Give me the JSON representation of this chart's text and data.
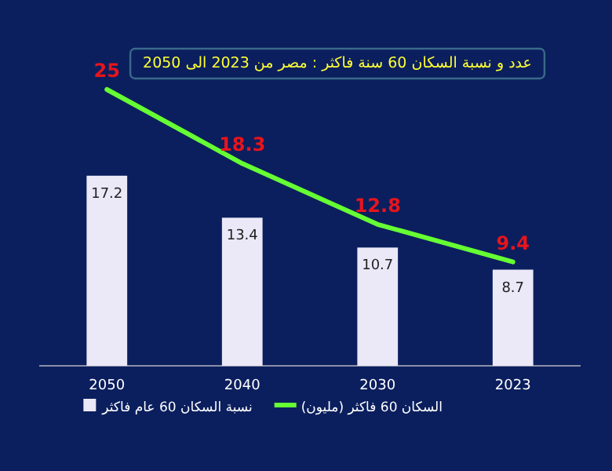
{
  "chart_data": {
    "type": "bar",
    "title": "عدد و نسبة السكان 60 سنة فاكثر : مصر من 2023 الى 2050",
    "categories": [
      "2050",
      "2040",
      "2030",
      "2023"
    ],
    "series": [
      {
        "name": "نسبة السكان 60 عام فاكثر",
        "color": "#ebe8f7",
        "values": [
          17.2,
          13.4,
          10.7,
          8.7
        ]
      },
      {
        "name": "السكان 60 فاكثر (مليون)",
        "type": "line",
        "color": "#66ff33",
        "values": [
          25,
          18.3,
          12.8,
          9.4
        ]
      }
    ],
    "data_labels": true,
    "legend": "bottom",
    "grid": false
  }
}
